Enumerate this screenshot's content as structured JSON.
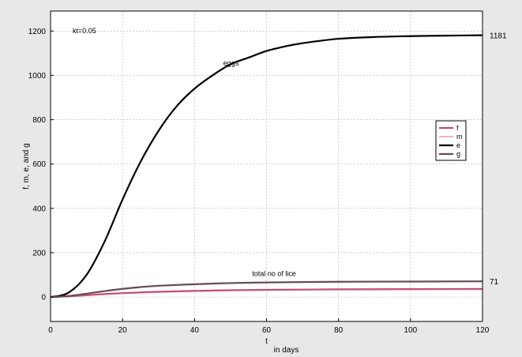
{
  "chart_data": {
    "type": "line",
    "title": "",
    "xlabel": "t",
    "xlabel_sub": "in days",
    "ylabel": "f, m, e, and g",
    "xlim": [
      0,
      120
    ],
    "ylim": [
      -110,
      1290
    ],
    "xticks": [
      0,
      20,
      40,
      60,
      80,
      100,
      120
    ],
    "yticks": [
      0,
      200,
      400,
      600,
      800,
      1000,
      1200
    ],
    "grid": true,
    "legend": {
      "placement": "right",
      "entries": [
        "f",
        "m",
        "e",
        "g"
      ]
    },
    "annotations": {
      "parameter": "kt=0.05",
      "eggs_label": "eggs",
      "lice_label": "total no of lice",
      "eggs_end_value": "1181",
      "lice_end_value": "71"
    },
    "series": [
      {
        "name": "f",
        "color": "#c0406a",
        "x": [
          0,
          5,
          10,
          15,
          20,
          30,
          40,
          50,
          60,
          80,
          100,
          120
        ],
        "y": [
          0,
          3,
          8,
          14,
          18,
          24,
          28,
          31,
          33,
          35,
          36,
          37
        ]
      },
      {
        "name": "m",
        "color": "#d06a8e",
        "x": [
          0,
          5,
          10,
          15,
          20,
          30,
          40,
          50,
          60,
          80,
          100,
          120
        ],
        "y": [
          0,
          2,
          6,
          11,
          15,
          21,
          25,
          28,
          30,
          32,
          33,
          34
        ]
      },
      {
        "name": "e",
        "color": "#000000",
        "x": [
          0,
          5,
          10,
          15,
          20,
          25,
          30,
          35,
          40,
          45,
          50,
          55,
          60,
          65,
          70,
          80,
          90,
          100,
          110,
          120
        ],
        "y": [
          0,
          20,
          100,
          250,
          440,
          610,
          750,
          860,
          940,
          1000,
          1050,
          1080,
          1110,
          1130,
          1145,
          1165,
          1173,
          1177,
          1179,
          1181
        ]
      },
      {
        "name": "g",
        "color": "#6a4a55",
        "x": [
          0,
          5,
          10,
          15,
          20,
          25,
          30,
          40,
          50,
          60,
          80,
          100,
          120
        ],
        "y": [
          0,
          5,
          15,
          27,
          37,
          45,
          51,
          58,
          63,
          66,
          69,
          70,
          71
        ]
      }
    ]
  }
}
